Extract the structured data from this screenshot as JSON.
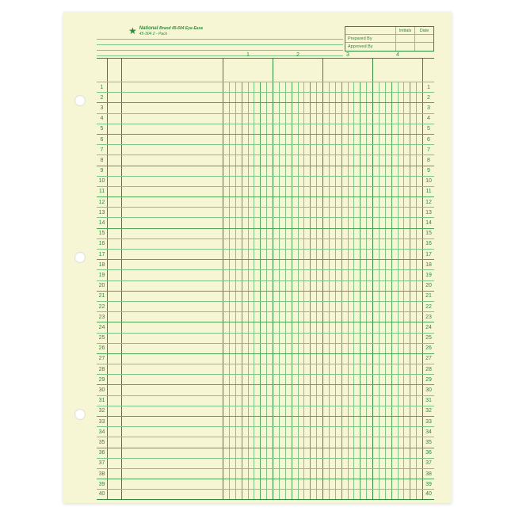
{
  "paper": {
    "background_color": "#f7f6d4",
    "line_strong": "#2e8b3e",
    "line_mid": "#4fa857",
    "line_weak": "#7fc585",
    "brand_name": "National",
    "brand_sub1": "Brand 45-604 Eye-Ease",
    "brand_sub2": "45-304 2 - Pack"
  },
  "header_box": {
    "initials": "Initials",
    "date": "Date",
    "prepared": "Prepared By",
    "approved": "Approved By"
  },
  "columns": {
    "labels": [
      "1",
      "2",
      "3",
      "4"
    ]
  },
  "rows": {
    "count": 40
  },
  "holes": {
    "positions_pct": [
      18,
      50,
      82
    ]
  }
}
